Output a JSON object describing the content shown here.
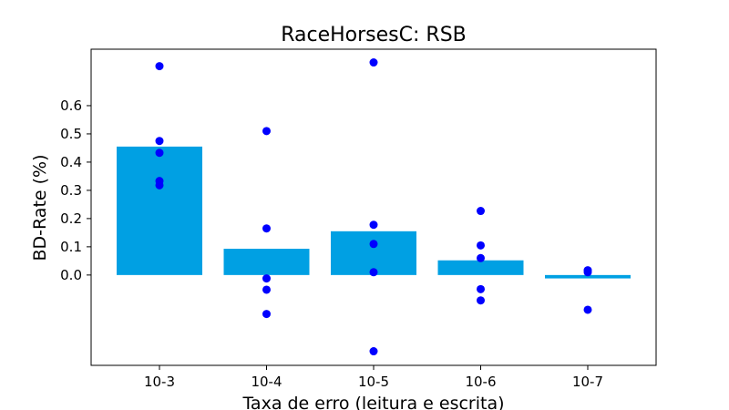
{
  "chart_data": {
    "type": "bar",
    "title": "RaceHorsesC: RSB",
    "xlabel": "Taxa de erro (leitura e escrita)",
    "ylabel": "BD-Rate (%)",
    "categories": [
      "10-3",
      "10-4",
      "10-5",
      "10-6",
      "10-7"
    ],
    "values": [
      0.455,
      0.093,
      0.155,
      0.052,
      -0.012
    ],
    "points": [
      [
        0.74,
        0.475,
        0.433,
        0.333,
        0.318
      ],
      [
        0.51,
        0.165,
        -0.012,
        -0.052,
        -0.138
      ],
      [
        0.753,
        0.178,
        0.11,
        0.01,
        -0.27
      ],
      [
        0.227,
        0.105,
        0.06,
        -0.05,
        -0.09
      ],
      [
        0.017,
        0.01,
        -0.123
      ]
    ],
    "yticks": [
      0.0,
      0.1,
      0.2,
      0.3,
      0.4,
      0.5,
      0.6
    ],
    "ylim": [
      -0.32,
      0.8
    ],
    "bar_color": "#00a0e3",
    "point_color": "#0000ff",
    "grid": false
  }
}
